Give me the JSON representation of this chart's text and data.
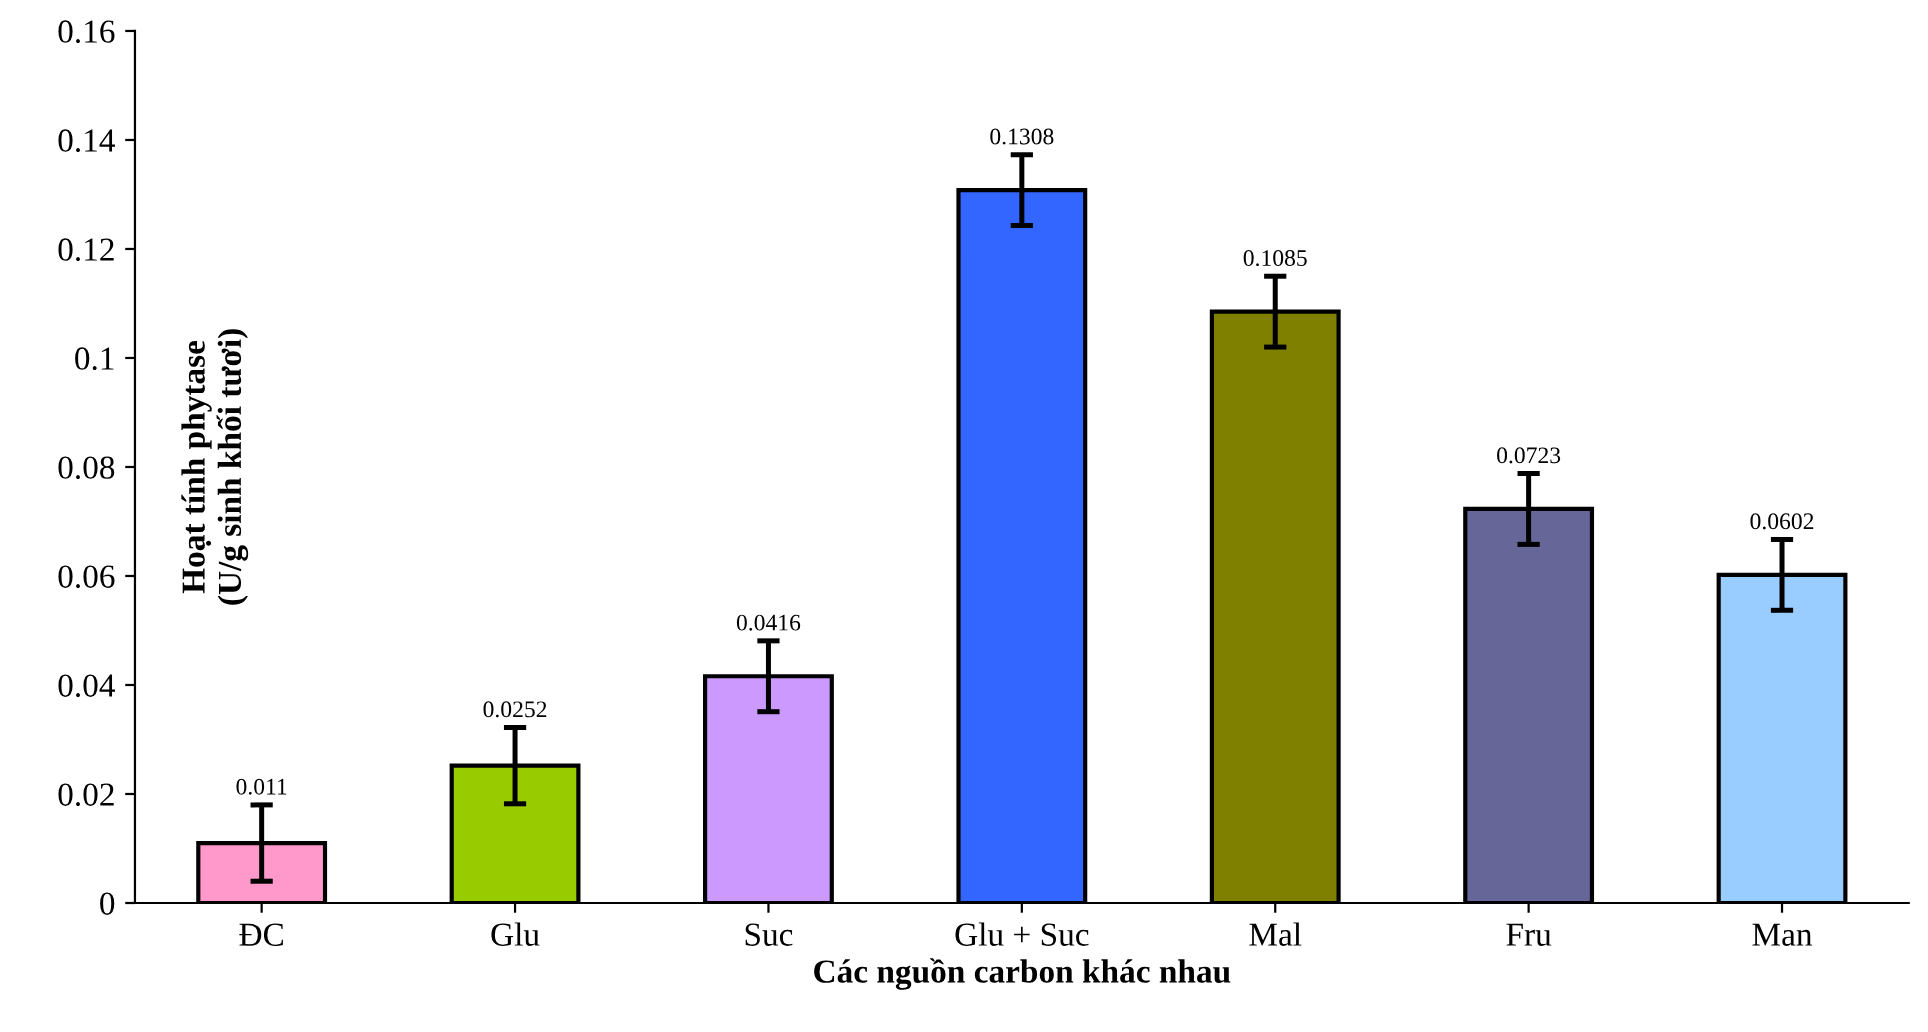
{
  "chart_data": {
    "type": "bar",
    "xlabel": "Các nguồn carbon khác nhau",
    "ylabel": "Hoạt tính phytase\n(U/g sinh khối tươi)",
    "categories": [
      "ĐC",
      "Glu",
      "Suc",
      "Glu + Suc",
      "Mal",
      "Fru",
      "Man"
    ],
    "values": [
      0.011,
      0.0252,
      0.0416,
      0.1308,
      0.1085,
      0.0723,
      0.0602
    ],
    "colors": [
      "#ff99cc",
      "#99cc00",
      "#cc99ff",
      "#3366ff",
      "#808000",
      "#666699",
      "#99ccff"
    ],
    "errors": [
      0.007,
      0.007,
      0.0065,
      0.0065,
      0.0065,
      0.0065,
      0.0065
    ],
    "ylim": [
      0,
      0.16
    ],
    "yticks": [
      0,
      0.02,
      0.04,
      0.06,
      0.08,
      0.1,
      0.12,
      0.14,
      0.16
    ],
    "data_labels": true,
    "grid": false,
    "legend": false
  }
}
